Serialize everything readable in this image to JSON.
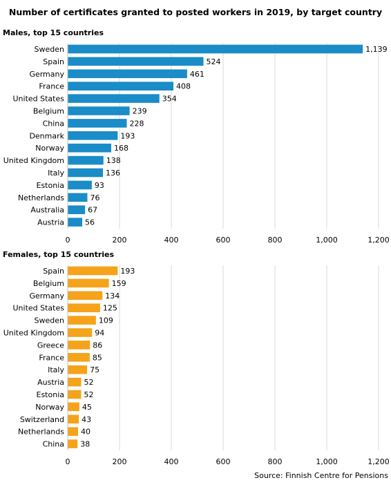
{
  "title": "Number of certificates granted to posted workers in 2019, by target country",
  "source": "Source: Finnish Centre for Pensions",
  "chart_data": [
    {
      "type": "bar",
      "orientation": "horizontal",
      "title": "Males, top 15 countries",
      "categories": [
        "Sweden",
        "Spain",
        "Germany",
        "France",
        "United States",
        "Belgium",
        "China",
        "Denmark",
        "Norway",
        "United Kingdom",
        "Italy",
        "Estonia",
        "Netherlands",
        "Australia",
        "Austria"
      ],
      "values": [
        1139,
        524,
        461,
        408,
        354,
        239,
        228,
        193,
        168,
        138,
        136,
        93,
        76,
        67,
        56
      ],
      "value_labels": [
        "1,139",
        "524",
        "461",
        "408",
        "354",
        "239",
        "228",
        "193",
        "168",
        "138",
        "136",
        "93",
        "76",
        "67",
        "56"
      ],
      "xlim": [
        0,
        1200
      ],
      "ticks": [
        "0",
        "200",
        "400",
        "600",
        "800",
        "1,000",
        "1,200"
      ],
      "grid": true,
      "color": "#1a8cc8"
    },
    {
      "type": "bar",
      "orientation": "horizontal",
      "title": "Females, top 15 countries",
      "categories": [
        "Spain",
        "Belgium",
        "Germany",
        "United States",
        "Sweden",
        "United Kingdom",
        "Greece",
        "France",
        "Italy",
        "Austria",
        "Estonia",
        "Norway",
        "Switzerland",
        "Netherlands",
        "China"
      ],
      "values": [
        193,
        159,
        134,
        125,
        109,
        94,
        86,
        85,
        75,
        52,
        52,
        45,
        43,
        40,
        38
      ],
      "value_labels": [
        "193",
        "159",
        "134",
        "125",
        "109",
        "94",
        "86",
        "85",
        "75",
        "52",
        "52",
        "45",
        "43",
        "40",
        "38"
      ],
      "xlim": [
        0,
        1200
      ],
      "ticks": [
        "0",
        "200",
        "400",
        "600",
        "800",
        "1,000",
        "1,200"
      ],
      "grid": true,
      "color": "#f5a31a"
    }
  ]
}
